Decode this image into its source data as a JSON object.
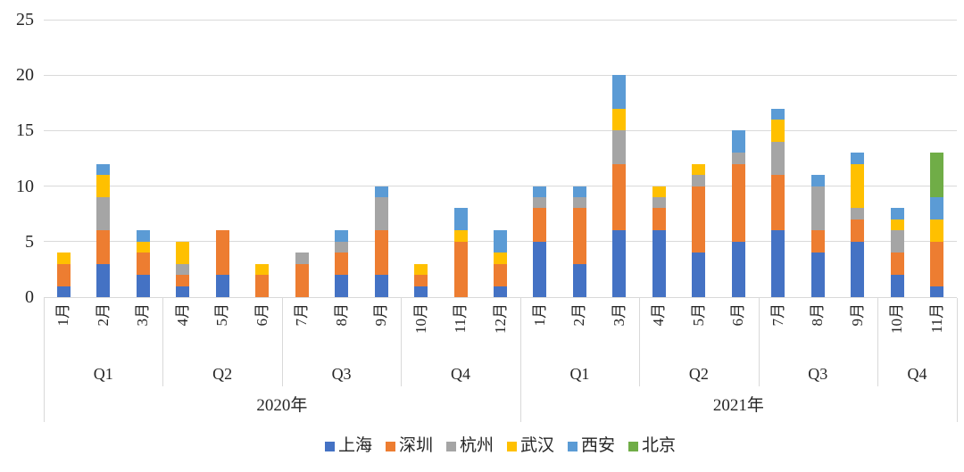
{
  "chart_data": {
    "type": "bar",
    "stacked": true,
    "title": "",
    "xlabel": "",
    "ylabel": "",
    "ylim": [
      0,
      25
    ],
    "yticks": [
      0,
      5,
      10,
      15,
      20,
      25
    ],
    "grid": true,
    "legend_position": "bottom",
    "categories": [
      "1月",
      "2月",
      "3月",
      "4月",
      "5月",
      "6月",
      "7月",
      "8月",
      "9月",
      "10月",
      "11月",
      "12月",
      "1月",
      "2月",
      "3月",
      "4月",
      "5月",
      "6月",
      "7月",
      "8月",
      "9月",
      "10月",
      "11月"
    ],
    "group_levels": {
      "quarters": [
        {
          "label": "Q1",
          "span": 3
        },
        {
          "label": "Q2",
          "span": 3
        },
        {
          "label": "Q3",
          "span": 3
        },
        {
          "label": "Q4",
          "span": 3
        },
        {
          "label": "Q1",
          "span": 3
        },
        {
          "label": "Q2",
          "span": 3
        },
        {
          "label": "Q3",
          "span": 3
        },
        {
          "label": "Q4",
          "span": 2
        }
      ],
      "years": [
        {
          "label": "2020年",
          "span": 12
        },
        {
          "label": "2021年",
          "span": 11
        }
      ]
    },
    "series": [
      {
        "name": "上海",
        "color": "#4472C4",
        "values": [
          1,
          3,
          2,
          1,
          2,
          0,
          0,
          2,
          2,
          1,
          0,
          1,
          5,
          3,
          6,
          6,
          4,
          5,
          6,
          4,
          5,
          2,
          1
        ]
      },
      {
        "name": "深圳",
        "color": "#ED7D31",
        "values": [
          2,
          3,
          2,
          1,
          4,
          2,
          3,
          2,
          4,
          1,
          5,
          2,
          3,
          5,
          6,
          2,
          6,
          7,
          5,
          2,
          2,
          2,
          4
        ]
      },
      {
        "name": "杭州",
        "color": "#A5A5A5",
        "values": [
          0,
          3,
          0,
          1,
          0,
          0,
          1,
          1,
          3,
          0,
          0,
          0,
          1,
          1,
          3,
          1,
          1,
          1,
          3,
          4,
          1,
          2,
          0
        ]
      },
      {
        "name": "武汉",
        "color": "#FFC000",
        "values": [
          1,
          2,
          1,
          2,
          0,
          1,
          0,
          0,
          0,
          1,
          1,
          1,
          0,
          0,
          2,
          1,
          1,
          0,
          2,
          0,
          4,
          1,
          2
        ]
      },
      {
        "name": "西安",
        "color": "#5B9BD5",
        "values": [
          0,
          1,
          1,
          0,
          0,
          0,
          0,
          1,
          1,
          0,
          2,
          2,
          1,
          1,
          3,
          0,
          0,
          2,
          1,
          1,
          1,
          1,
          2
        ]
      },
      {
        "name": "北京",
        "color": "#70AD47",
        "values": [
          0,
          0,
          0,
          0,
          0,
          0,
          0,
          0,
          0,
          0,
          0,
          0,
          0,
          0,
          0,
          0,
          0,
          0,
          0,
          0,
          0,
          0,
          4
        ]
      }
    ],
    "colors": {
      "gridline": "#D9D9D9",
      "divider": "#D9D9D9",
      "axis_text": "#262626",
      "background": "#FFFFFF"
    }
  }
}
